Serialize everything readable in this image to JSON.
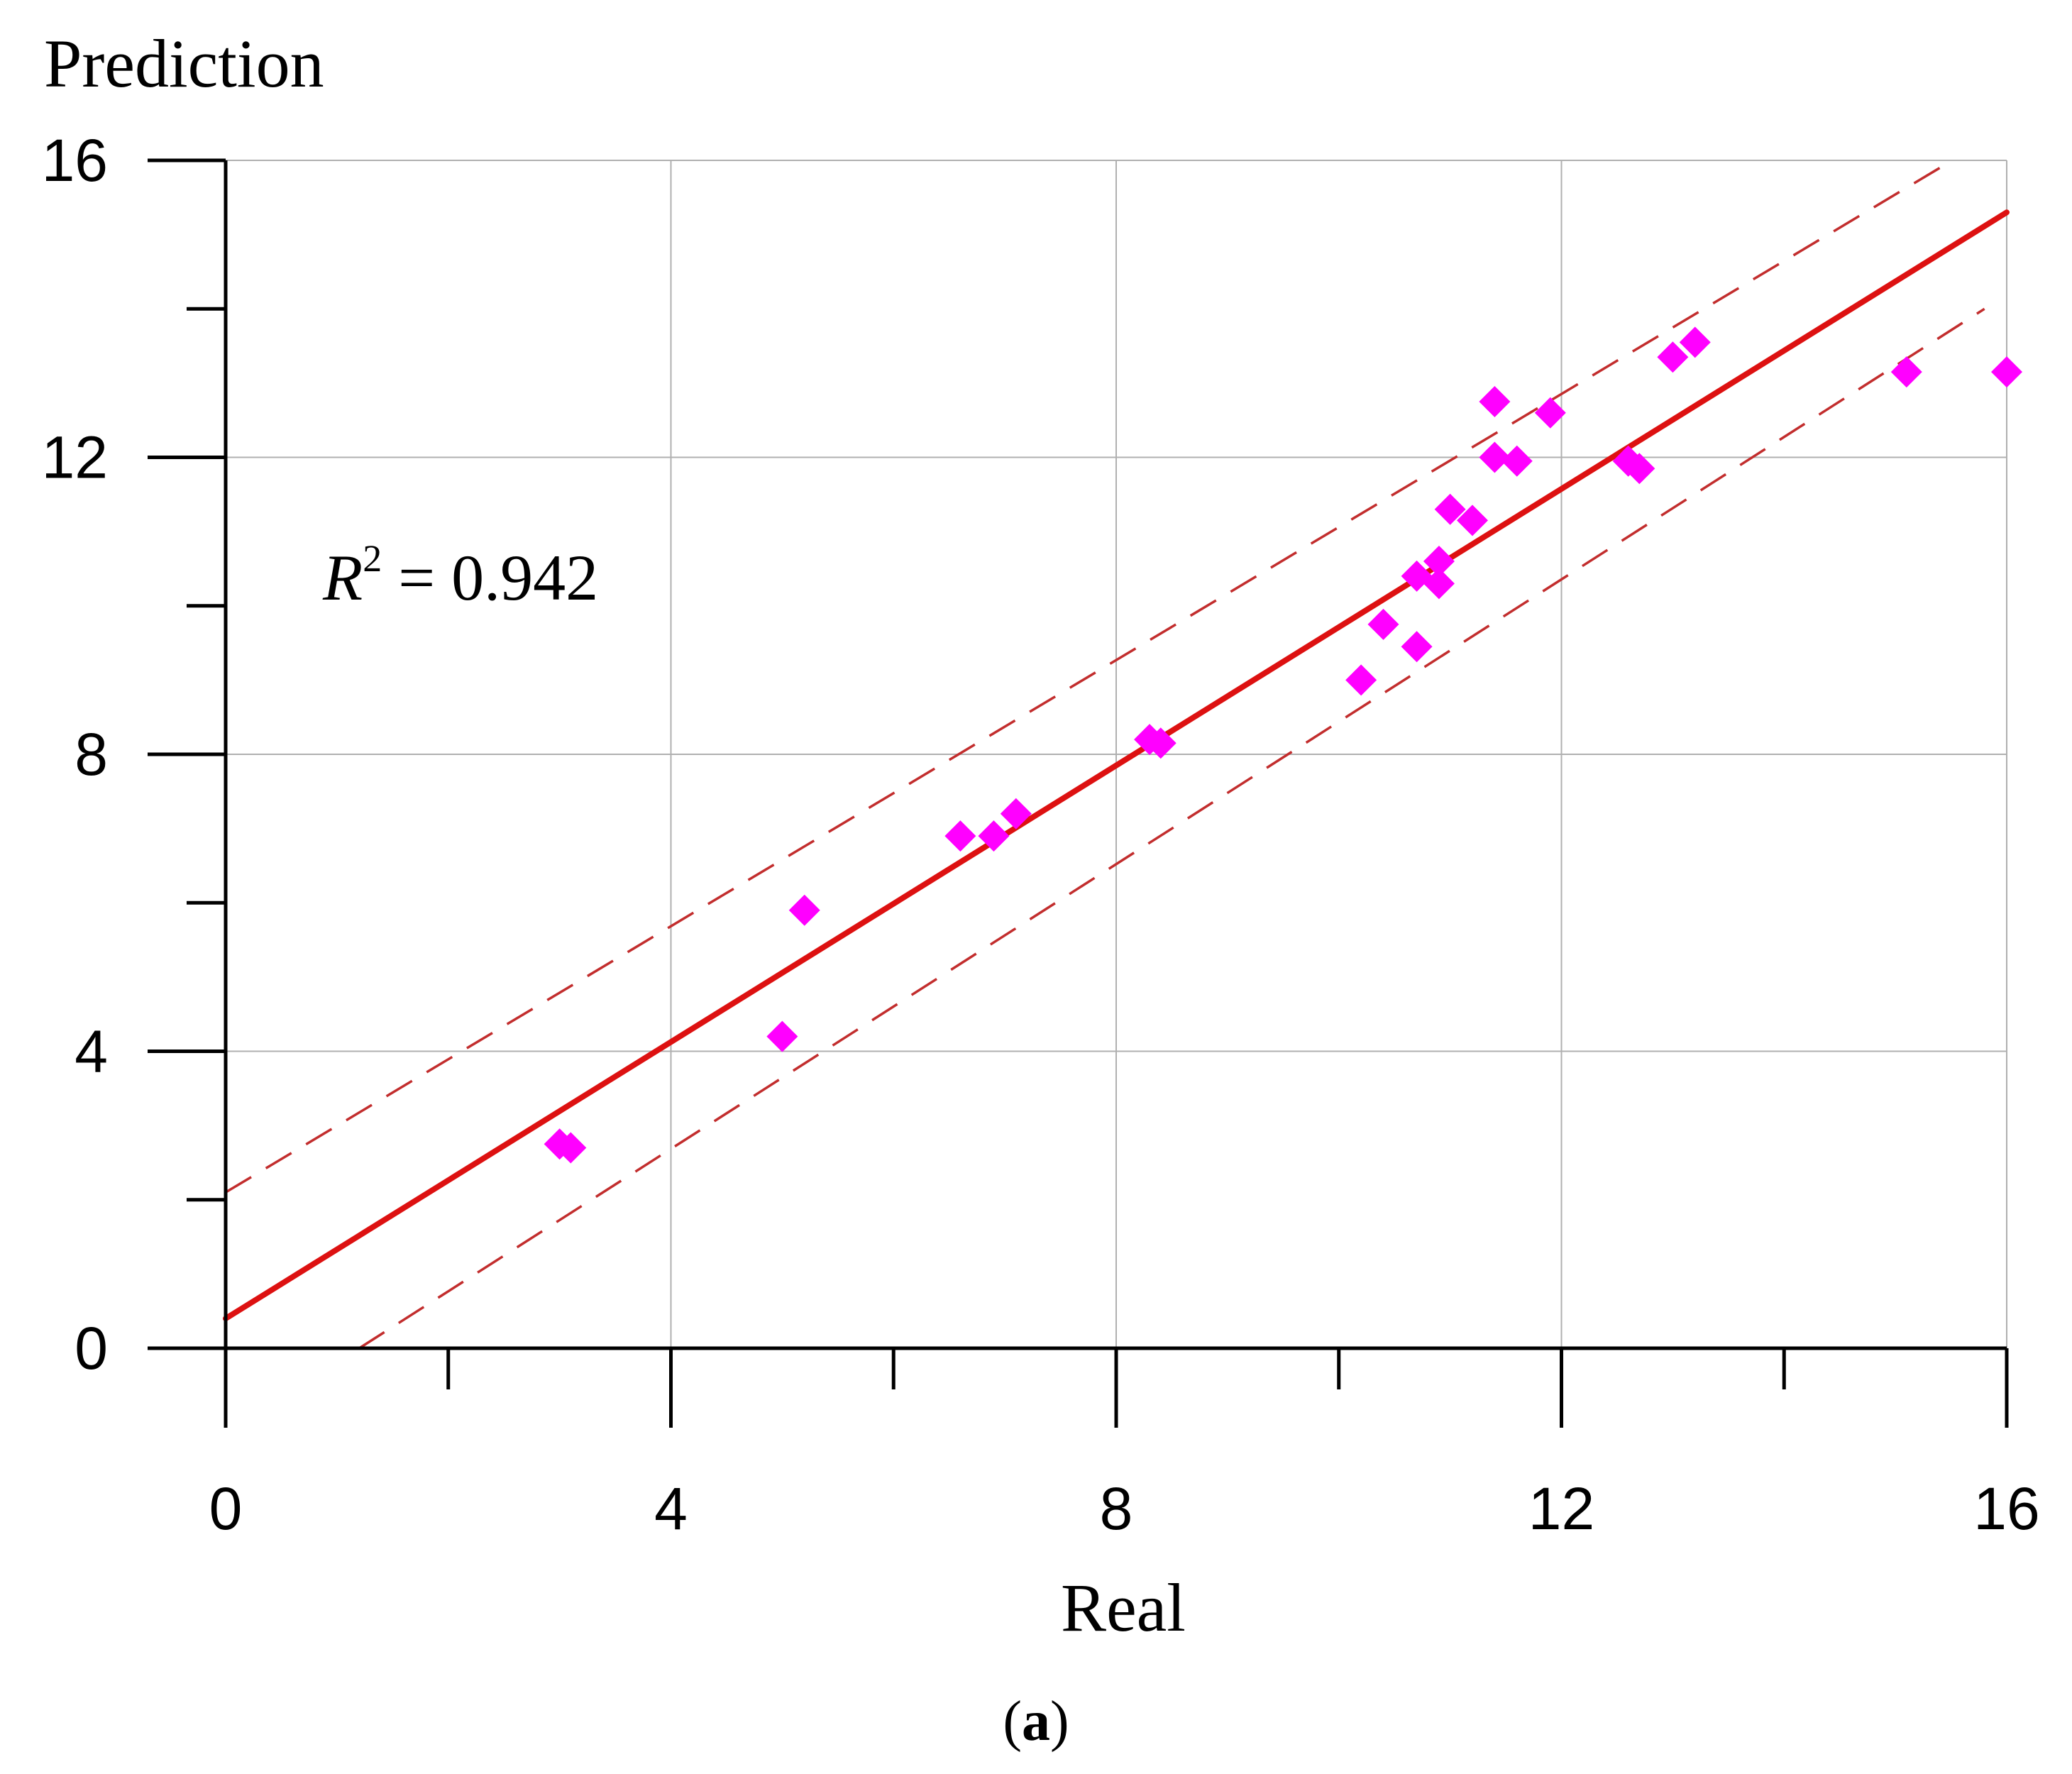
{
  "chart_data": {
    "type": "scatter",
    "xlabel": "Real",
    "ylabel": "Prediction",
    "xlim": [
      0,
      16
    ],
    "ylim": [
      0,
      16
    ],
    "x_ticks": [
      0,
      4,
      8,
      12,
      16
    ],
    "y_ticks": [
      0,
      4,
      8,
      12,
      16
    ],
    "x_minor_ticks": [
      2,
      6,
      10,
      14
    ],
    "y_minor_ticks": [
      2,
      6,
      10,
      14
    ],
    "grid": true,
    "annotation": {
      "symbol": "R",
      "superscript": "2",
      "text": " = 0.942"
    },
    "panel_label": {
      "open": "(",
      "letter": "a",
      "close": ")"
    },
    "colors": {
      "points": "#ff00ff",
      "fit_line": "#dd1111",
      "band": "#c22d2d",
      "grid": "#b0b0b0",
      "axis": "#000000"
    },
    "points": [
      {
        "x": 3.0,
        "y": 2.75
      },
      {
        "x": 3.1,
        "y": 2.7
      },
      {
        "x": 5.0,
        "y": 4.2
      },
      {
        "x": 5.2,
        "y": 5.9
      },
      {
        "x": 6.6,
        "y": 6.9
      },
      {
        "x": 6.9,
        "y": 6.9
      },
      {
        "x": 7.1,
        "y": 7.2
      },
      {
        "x": 8.3,
        "y": 8.2
      },
      {
        "x": 8.4,
        "y": 8.15
      },
      {
        "x": 10.2,
        "y": 9.0
      },
      {
        "x": 10.4,
        "y": 9.75
      },
      {
        "x": 10.7,
        "y": 9.45
      },
      {
        "x": 10.7,
        "y": 10.4
      },
      {
        "x": 10.9,
        "y": 10.3
      },
      {
        "x": 10.9,
        "y": 10.6
      },
      {
        "x": 11.0,
        "y": 11.3
      },
      {
        "x": 11.2,
        "y": 11.15
      },
      {
        "x": 11.4,
        "y": 12.0
      },
      {
        "x": 11.4,
        "y": 12.75
      },
      {
        "x": 11.6,
        "y": 11.95
      },
      {
        "x": 11.9,
        "y": 12.6
      },
      {
        "x": 12.6,
        "y": 11.95
      },
      {
        "x": 12.7,
        "y": 11.85
      },
      {
        "x": 13.0,
        "y": 13.35
      },
      {
        "x": 13.2,
        "y": 13.55
      },
      {
        "x": 15.1,
        "y": 13.15
      },
      {
        "x": 16.0,
        "y": 13.15
      }
    ],
    "fit_line": {
      "x": [
        0,
        16
      ],
      "y": [
        0.4,
        15.3
      ]
    },
    "upper_band": {
      "x": [
        0,
        15.4
      ],
      "y": [
        2.1,
        15.9
      ]
    },
    "lower_band": {
      "x": [
        1.2,
        15.8
      ],
      "y": [
        0.0,
        14.0
      ]
    }
  }
}
